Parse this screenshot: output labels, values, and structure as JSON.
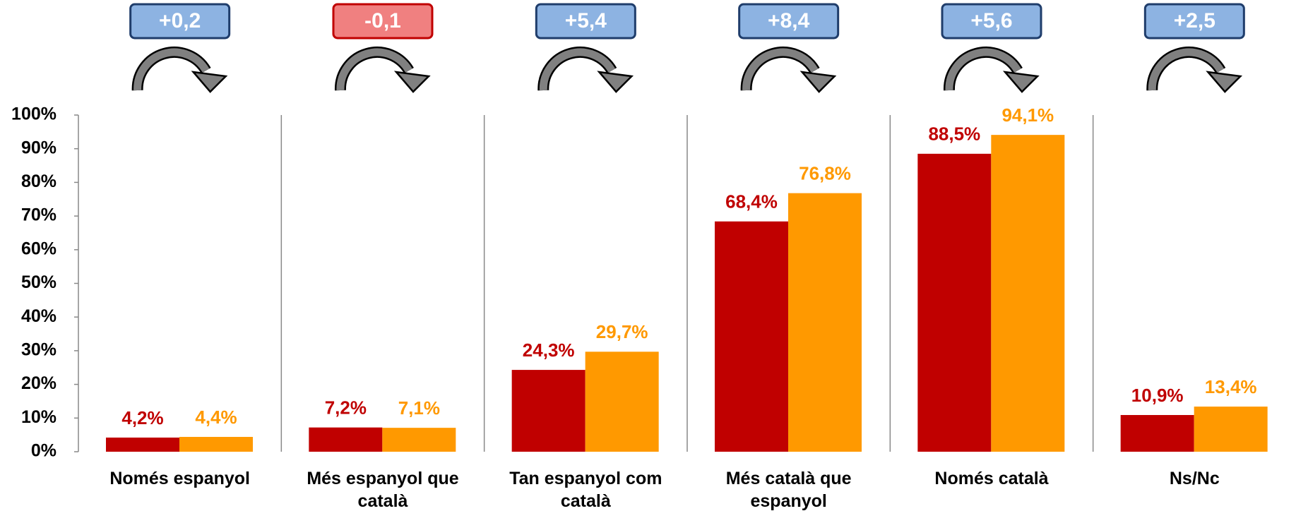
{
  "chart_data": {
    "type": "bar",
    "categories": [
      "Només espanyol",
      "Més espanyol que català",
      "Tan espanyol com català",
      "Més català que espanyol",
      "Només català",
      "Ns/Nc"
    ],
    "series": [
      {
        "color": "#c00000",
        "values": [
          4.2,
          7.2,
          24.3,
          68.4,
          88.5,
          10.9
        ],
        "value_labels": [
          "4,2%",
          "7,2%",
          "24,3%",
          "68,4%",
          "88,5%",
          "10,9%"
        ]
      },
      {
        "color": "#ff9900",
        "values": [
          4.4,
          7.1,
          29.7,
          76.8,
          94.1,
          13.4
        ],
        "value_labels": [
          "4,4%",
          "7,1%",
          "29,7%",
          "76,8%",
          "94,1%",
          "13,4%"
        ]
      }
    ],
    "annotations": [
      {
        "value": 0.2,
        "label": "+0,2"
      },
      {
        "value": -0.1,
        "label": "-0,1"
      },
      {
        "value": 5.4,
        "label": "+5,4"
      },
      {
        "value": 8.4,
        "label": "+8,4"
      },
      {
        "value": 5.6,
        "label": "+5,6"
      },
      {
        "value": 2.5,
        "label": "+2,5"
      }
    ],
    "annotation_colors": {
      "positive": "#8db3e2",
      "positive_border": "#1f3d6b",
      "negative": "#f08080",
      "negative_border": "#c00000"
    },
    "ylim": [
      0,
      100
    ],
    "yticks": [
      {
        "value": 0,
        "label": "0%"
      },
      {
        "value": 10,
        "label": "10%"
      },
      {
        "value": 20,
        "label": "20%"
      },
      {
        "value": 30,
        "label": "30%"
      },
      {
        "value": 40,
        "label": "40%"
      },
      {
        "value": 50,
        "label": "50%"
      },
      {
        "value": 60,
        "label": "60%"
      },
      {
        "value": 70,
        "label": "70%"
      },
      {
        "value": 80,
        "label": "80%"
      },
      {
        "value": 90,
        "label": "90%"
      },
      {
        "value": 100,
        "label": "100%"
      }
    ]
  }
}
